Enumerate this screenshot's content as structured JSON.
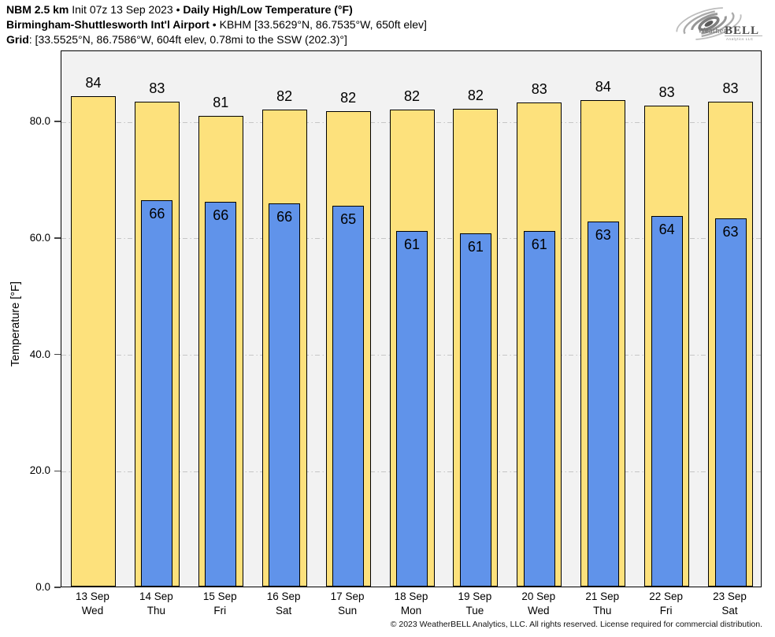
{
  "header": {
    "line1": {
      "seg1_bold": "NBM 2.5 km",
      "seg2": " Init 07z 13 Sep 2023 • ",
      "seg3_bold": "Daily High/Low Temperature (°F)"
    },
    "line2": {
      "seg1_bold": "Birmingham-Shuttlesworth Int'l Airport",
      "seg2": " • KBHM [33.5629°N, 86.7535°W, 650ft elev]"
    },
    "line3": {
      "seg1_bold": "Grid",
      "seg2": ": [33.5525°N, 86.7586°W, 604ft elev, 0.78mi to the SSW (202.3)°]"
    }
  },
  "logo": {
    "weather": "Weather",
    "bell": "BELL",
    "sub": "Analytics LLC"
  },
  "footer": {
    "copyright": "© 2023 WeatherBELL Analytics, LLC. All rights reserved. License required for commercial distribution."
  },
  "chart_data": {
    "type": "bar",
    "title": "NBM 2.5 km Daily High/Low Temperature (°F) — Birmingham-Shuttlesworth Int'l Airport (KBHM)",
    "xlabel": "",
    "ylabel": "Temperature [°F]",
    "ylim": [
      0,
      92.2
    ],
    "grid": {
      "horizontal": true,
      "style": "dash-dot",
      "at": [
        20,
        40,
        60,
        80
      ]
    },
    "legend": "none",
    "yticks": [
      {
        "value": 0,
        "label": "0.0"
      },
      {
        "value": 20,
        "label": "20.0"
      },
      {
        "value": 40,
        "label": "40.0"
      },
      {
        "value": 60,
        "label": "60.0"
      },
      {
        "value": 80,
        "label": "80.0"
      }
    ],
    "categories": [
      {
        "date": "13 Sep",
        "day": "Wed"
      },
      {
        "date": "14 Sep",
        "day": "Thu"
      },
      {
        "date": "15 Sep",
        "day": "Fri"
      },
      {
        "date": "16 Sep",
        "day": "Sat"
      },
      {
        "date": "17 Sep",
        "day": "Sun"
      },
      {
        "date": "18 Sep",
        "day": "Mon"
      },
      {
        "date": "19 Sep",
        "day": "Tue"
      },
      {
        "date": "20 Sep",
        "day": "Wed"
      },
      {
        "date": "21 Sep",
        "day": "Thu"
      },
      {
        "date": "22 Sep",
        "day": "Fri"
      },
      {
        "date": "23 Sep",
        "day": "Sat"
      }
    ],
    "series": [
      {
        "name": "High",
        "color": "#FDE17C",
        "labels": [
          84,
          83,
          81,
          82,
          82,
          82,
          82,
          83,
          84,
          83,
          83
        ],
        "values": [
          84.2,
          83.3,
          80.8,
          81.9,
          81.7,
          81.9,
          82.0,
          83.1,
          83.6,
          82.6,
          83.3
        ]
      },
      {
        "name": "Low",
        "color": "#6093EA",
        "labels": [
          null,
          66,
          66,
          66,
          65,
          61,
          61,
          61,
          63,
          64,
          63
        ],
        "values": [
          null,
          66.4,
          66.1,
          65.8,
          65.4,
          61.1,
          60.6,
          61.0,
          62.7,
          63.6,
          63.2
        ]
      }
    ]
  },
  "colors": {
    "high_bar": "#FDE17C",
    "low_bar": "#6093EA",
    "bar_edge": "#000000",
    "plot_background": "#f2f2f2",
    "gridline": "#c6c6c6",
    "page_background": "#ffffff"
  }
}
